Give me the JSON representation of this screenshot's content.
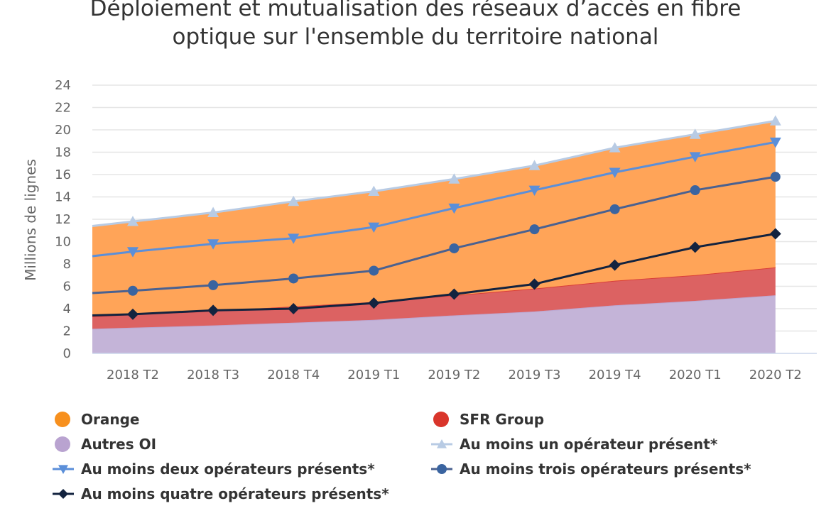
{
  "chart_data": {
    "type": "area",
    "title": "Déploiement et mutualisation des réseaux d’accès en fibre optique sur l'ensemble du territoire national",
    "title_lines": [
      "Déploiement et mutualisation des réseaux d’accès en fibre",
      "optique sur l'ensemble du territoire national"
    ],
    "xlabel": "",
    "ylabel": "Millions de lignes",
    "ylim": [
      0,
      24
    ],
    "yticks": [
      0,
      2,
      4,
      6,
      8,
      10,
      12,
      14,
      16,
      18,
      20,
      22,
      24
    ],
    "grid": true,
    "legend_position": "bottom",
    "categories": [
      "",
      "2018 T2",
      "2018 T3",
      "2018 T4",
      "2019 T1",
      "2019 T2",
      "2019 T3",
      "2019 T4",
      "2020 T1",
      "2020 T2"
    ],
    "stacked_areas": [
      {
        "name": "Autres OI",
        "color": "#B9A3D0",
        "fill": "#C4B4D8",
        "values": [
          2.2,
          2.3,
          2.5,
          2.75,
          3.0,
          3.4,
          3.75,
          4.3,
          4.7,
          5.2
        ]
      },
      {
        "name": "SFR Group",
        "color": "#D9352B",
        "fill": "#DC6262",
        "values": [
          1.1,
          1.2,
          1.3,
          1.45,
          1.6,
          1.8,
          2.05,
          2.2,
          2.3,
          2.5
        ]
      },
      {
        "name": "Orange",
        "color": "#F7901E",
        "fill": "#FFA458",
        "values": [
          8.1,
          8.3,
          8.8,
          9.4,
          9.9,
          10.4,
          11.0,
          11.9,
          12.6,
          13.1
        ]
      }
    ],
    "lines": [
      {
        "name": "Au moins un opérateur présent*",
        "color": "#B8CBE4",
        "marker": "triangle",
        "values": [
          11.4,
          11.8,
          12.6,
          13.6,
          14.5,
          15.6,
          16.8,
          18.4,
          19.6,
          20.8
        ]
      },
      {
        "name": "Au moins deux opérateurs présents*",
        "color": "#5B8FD9",
        "marker": "triangle-down",
        "values": [
          8.7,
          9.1,
          9.8,
          10.3,
          11.3,
          13.0,
          14.6,
          16.2,
          17.6,
          18.9
        ]
      },
      {
        "name": "Au moins trois opérateurs présents*",
        "color": "#4A6190",
        "marker_color": "#3A64A0",
        "marker": "circle",
        "values": [
          5.4,
          5.6,
          6.1,
          6.7,
          7.4,
          9.4,
          11.1,
          12.9,
          14.6,
          15.8
        ]
      },
      {
        "name": "Au moins quatre opérateurs présents*",
        "color": "#13233F",
        "marker": "diamond",
        "values": [
          3.4,
          3.5,
          3.85,
          4.0,
          4.5,
          5.3,
          6.2,
          7.9,
          9.5,
          10.7
        ]
      }
    ],
    "legend_order": [
      "Orange",
      "SFR Group",
      "Autres OI",
      "Au moins un opérateur présent*",
      "Au moins deux opérateurs présents*",
      "Au moins trois opérateurs présents*",
      "Au moins quatre opérateurs présents*"
    ]
  }
}
